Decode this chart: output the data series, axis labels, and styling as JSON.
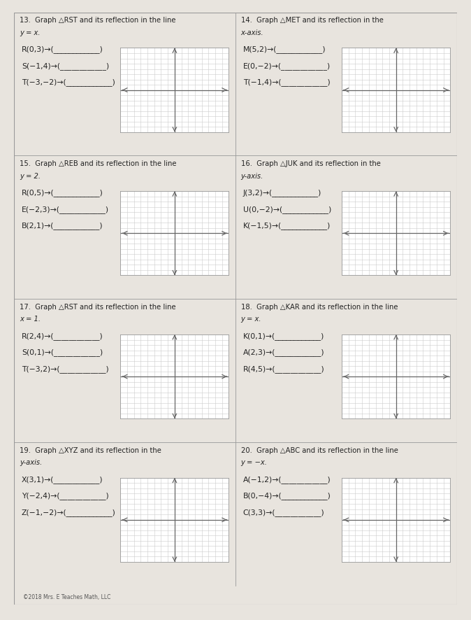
{
  "bg_color": "#e8e4de",
  "paper_color": "#f7f5f2",
  "border_color": "#999999",
  "grid_color": "#cccccc",
  "axis_color": "#666666",
  "text_color": "#222222",
  "title_fontsize": 7.2,
  "label_fontsize": 7.8,
  "small_fontsize": 6.8,
  "copyright": "©2018 Mrs. E Teaches Math, LLC",
  "problems": [
    {
      "num": "13.",
      "title": "Graph △RST and its reflection in the line",
      "title2": "y = x.",
      "points": [
        "R(0,3)→(____________)",
        "S(−1,4)→(____________)",
        "T(−3,−2)→(____________)"
      ]
    },
    {
      "num": "14.",
      "title": "Graph △MET and its reflection in the",
      "title2": "x-axis.",
      "points": [
        "M(5,2)→(____________)",
        "E(0,−2)→(____________)",
        "T(−1,4)→(____________)"
      ]
    },
    {
      "num": "15.",
      "title": "Graph △REB and its reflection in the line",
      "title2": "y = 2.",
      "points": [
        "R(0,5)→(____________)",
        "E(−2,3)→(____________)",
        "B(2,1)→(____________)"
      ]
    },
    {
      "num": "16.",
      "title": "Graph △JUK and its reflection in the",
      "title2": "y-axis.",
      "points": [
        "J(3,2)→(____________)",
        "U(0,−2)→(____________)",
        "K(−1,5)→(____________)"
      ]
    },
    {
      "num": "17.",
      "title": "Graph △RST and its reflection in the line",
      "title2": "x = 1.",
      "points": [
        "R(2,4)→(____________)",
        "S(0,1)→(____________)",
        "T(−3,2)→(____________)"
      ]
    },
    {
      "num": "18.",
      "title": "Graph △KAR and its reflection in the line",
      "title2": "y = x.",
      "points": [
        "K(0,1)→(____________)",
        "A(2,3)→(____________)",
        "R(4,5)→(____________)"
      ]
    },
    {
      "num": "19.",
      "title": "Graph △XYZ and its reflection in the",
      "title2": "y-axis.",
      "points": [
        "X(3,1)→(____________)",
        "Y(−2,4)→(____________)",
        "Z(−1,−2)→(____________)"
      ]
    },
    {
      "num": "20.",
      "title": "Graph △ABC and its reflection in the line",
      "title2": "y = −x.",
      "points": [
        "A(−1,2)→(____________)",
        "B(0,−4)→(____________)",
        "C(3,3)→(____________)"
      ]
    }
  ]
}
